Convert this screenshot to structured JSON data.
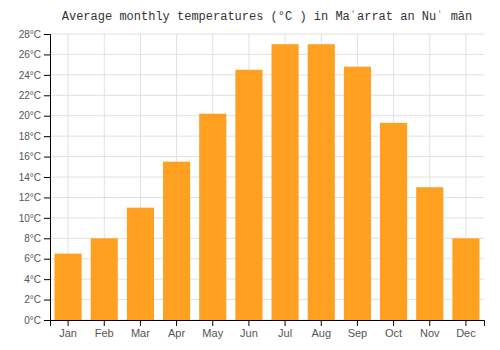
{
  "chart_data": {
    "type": "bar",
    "title": "Average monthly temperatures (°C ) in Maʿarrat an Nuʿ mān",
    "categories": [
      "Jan",
      "Feb",
      "Mar",
      "Apr",
      "May",
      "Jun",
      "Jul",
      "Aug",
      "Sep",
      "Oct",
      "Nov",
      "Dec"
    ],
    "values": [
      6.5,
      8.0,
      11.0,
      15.5,
      20.2,
      24.5,
      27.0,
      27.0,
      24.8,
      19.3,
      13.0,
      8.0
    ],
    "color": "#FFA020",
    "ylim": [
      0,
      28
    ],
    "yticks": [
      {
        "value": 0,
        "label": "0°C"
      },
      {
        "value": 2,
        "label": "2°C"
      },
      {
        "value": 4,
        "label": "4°C"
      },
      {
        "value": 6,
        "label": "6°C"
      },
      {
        "value": 8,
        "label": "8°C"
      },
      {
        "value": 10,
        "label": "10°C"
      },
      {
        "value": 12,
        "label": "12°C"
      },
      {
        "value": 14,
        "label": "14°C"
      },
      {
        "value": 16,
        "label": "16°C"
      },
      {
        "value": 18,
        "label": "18°C"
      },
      {
        "value": 20,
        "label": "20°C"
      },
      {
        "value": 22,
        "label": "22°C"
      },
      {
        "value": 24,
        "label": "24°C"
      },
      {
        "value": 26,
        "label": "26°C"
      },
      {
        "value": 28,
        "label": "28°C"
      }
    ],
    "grid": true
  }
}
